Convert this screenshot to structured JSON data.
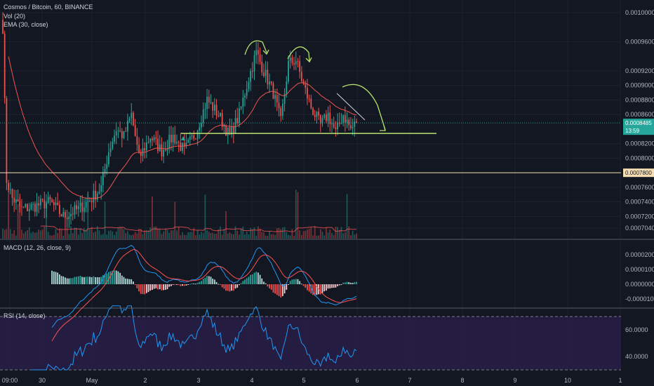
{
  "chart_data": [
    {
      "type": "candlestick",
      "title": "Cosmos / Bitcoin, 60, BINANCE",
      "indicators": [
        "Vol (20)",
        "EMA (30, close)"
      ],
      "x_ticks": [
        "09:00",
        "30",
        "May",
        "2",
        "3",
        "4",
        "5",
        "6",
        "7",
        "8",
        "9",
        "10",
        "1"
      ],
      "y_ticks": [
        "0.0010000",
        "0.0009600",
        "0.0009200",
        "0.0009000",
        "0.0008800",
        "0.0008600",
        "0.0008200",
        "0.0008000",
        "0.0007600",
        "0.0007400",
        "0.0007200",
        "0.0007040"
      ],
      "price_tags": [
        {
          "label": "0.0008485",
          "color": "#26a69a"
        },
        {
          "label": "13:59",
          "color": "#26a69a"
        },
        {
          "label": "0.0007800",
          "color": "#f5deb3"
        }
      ],
      "support_level": 0.000834,
      "horizontal_line": 0.00078,
      "last_price": 0.0008485,
      "ohlc_anchors": [
        {
          "t": 0,
          "p": 0.00098
        },
        {
          "t": 2,
          "p": 0.00077
        },
        {
          "t": 5,
          "p": 0.000745
        },
        {
          "t": 10,
          "p": 0.00073
        },
        {
          "t": 18,
          "p": 0.000735
        },
        {
          "t": 25,
          "p": 0.00074
        },
        {
          "t": 32,
          "p": 0.00072
        },
        {
          "t": 40,
          "p": 0.00073
        },
        {
          "t": 47,
          "p": 0.000745
        },
        {
          "t": 52,
          "p": 0.00076
        },
        {
          "t": 56,
          "p": 0.00081
        },
        {
          "t": 60,
          "p": 0.00084
        },
        {
          "t": 64,
          "p": 0.00083
        },
        {
          "t": 68,
          "p": 0.00086
        },
        {
          "t": 72,
          "p": 0.0008
        },
        {
          "t": 78,
          "p": 0.00083
        },
        {
          "t": 84,
          "p": 0.00081
        },
        {
          "t": 90,
          "p": 0.00083
        },
        {
          "t": 96,
          "p": 0.00081
        },
        {
          "t": 102,
          "p": 0.000835
        },
        {
          "t": 108,
          "p": 0.00088
        },
        {
          "t": 114,
          "p": 0.00086
        },
        {
          "t": 120,
          "p": 0.00083
        },
        {
          "t": 125,
          "p": 0.00086
        },
        {
          "t": 130,
          "p": 0.00091
        },
        {
          "t": 134,
          "p": 0.000945
        },
        {
          "t": 138,
          "p": 0.00092
        },
        {
          "t": 143,
          "p": 0.00089
        },
        {
          "t": 147,
          "p": 0.00085
        },
        {
          "t": 151,
          "p": 0.00093
        },
        {
          "t": 155,
          "p": 0.000935
        },
        {
          "t": 159,
          "p": 0.0009
        },
        {
          "t": 163,
          "p": 0.00087
        },
        {
          "t": 168,
          "p": 0.000845
        },
        {
          "t": 172,
          "p": 0.00086
        },
        {
          "t": 176,
          "p": 0.000835
        },
        {
          "t": 180,
          "p": 0.00086
        },
        {
          "t": 184,
          "p": 0.00084
        },
        {
          "t": 187,
          "p": 0.0008485
        }
      ],
      "annotations": [
        "arc-arrow-left-shoulder",
        "arc-arrow-head",
        "arc-arrow-right-shoulder",
        "trend-arrow-down",
        "neckline"
      ]
    },
    {
      "type": "macd",
      "title": "MACD (12, 26, close, 9)",
      "y_ticks": [
        "0.0000200",
        "0.0000100",
        "0.0000000",
        "-0.0000100"
      ],
      "colors": {
        "macd": "#2196f3",
        "signal": "#ff5252",
        "hist_pos_strong": "#26a69a",
        "hist_pos_weak": "#b2dfdb",
        "hist_neg_strong": "#ef5350",
        "hist_neg_weak": "#ffcdd2"
      }
    },
    {
      "type": "rsi",
      "title": "RSI (14, close)",
      "y_ticks": [
        "60.0000",
        "40.0000"
      ],
      "band": [
        30,
        70
      ],
      "colors": {
        "line": "#2196f3",
        "band": "#2a1f4a"
      }
    }
  ],
  "colors": {
    "background": "#131722",
    "grid": "#1e222d",
    "up": "#26a69a",
    "down": "#ef5350",
    "ema": "#ef5350",
    "annotation": "#b7e36f",
    "axis_text": "#b2b5be"
  }
}
